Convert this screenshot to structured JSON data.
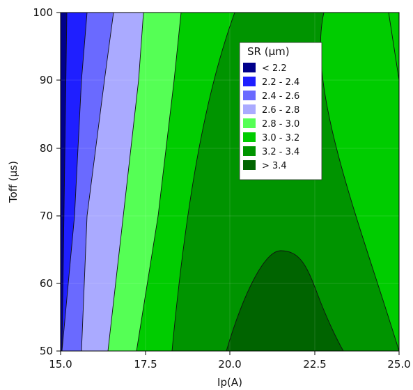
{
  "chart_data": {
    "type": "contour",
    "xlabel": "Ip(A)",
    "ylabel": "Toff (μs)",
    "xlim": [
      15.0,
      25.0
    ],
    "ylim": [
      50,
      100
    ],
    "xticks": [
      "15.0",
      "17.5",
      "20.0",
      "22.5",
      "25.0"
    ],
    "yticks": [
      "50",
      "60",
      "70",
      "80",
      "90",
      "100"
    ],
    "xtick_values": [
      15.0,
      17.5,
      20.0,
      22.5,
      25.0
    ],
    "ytick_values": [
      50,
      60,
      70,
      80,
      90,
      100
    ],
    "legend": {
      "title": "SR (μm)",
      "placement": "upper-right-inside",
      "items": [
        {
          "range": "< 2.2",
          "color": "#00008b"
        },
        {
          "range": "2.2 - 2.4",
          "color": "#1f1fff"
        },
        {
          "range": "2.4 - 2.6",
          "color": "#6a6aff"
        },
        {
          "range": "2.6 - 2.8",
          "color": "#aaaaff"
        },
        {
          "range": "2.8 - 3.0",
          "color": "#55ff55"
        },
        {
          "range": "3.0 - 3.2",
          "color": "#00cc00"
        },
        {
          "range": "3.2 - 3.4",
          "color": "#009400"
        },
        {
          "range": "> 3.4",
          "color": "#006400"
        }
      ]
    },
    "contour_lines": [
      {
        "level": 2.2,
        "points": [
          [
            15.05,
            50
          ],
          [
            15.15,
            100
          ]
        ]
      },
      {
        "level": 2.4,
        "points": [
          [
            15.65,
            50
          ],
          [
            16.0,
            70
          ],
          [
            16.35,
            90
          ],
          [
            16.5,
            100
          ]
        ]
      },
      {
        "level": 2.6,
        "points": [
          [
            16.4,
            50
          ],
          [
            16.8,
            70
          ],
          [
            17.2,
            90
          ],
          [
            17.35,
            100
          ]
        ]
      },
      {
        "level": 2.8,
        "points": [
          [
            17.25,
            50
          ],
          [
            17.7,
            70
          ],
          [
            18.1,
            90
          ],
          [
            18.3,
            100
          ]
        ]
      },
      {
        "level": 3.0,
        "points": [
          [
            18.3,
            50
          ],
          [
            18.55,
            70
          ],
          [
            18.85,
            90
          ],
          [
            19.05,
            100
          ]
        ]
      },
      {
        "level": 3.2,
        "points": [
          [
            19.6,
            50
          ],
          [
            20.05,
            70
          ],
          [
            20.6,
            90
          ],
          [
            21.3,
            100
          ],
          [
            22.5,
            100
          ],
          [
            23.5,
            80
          ],
          [
            24.2,
            65
          ],
          [
            25.0,
            50
          ]
        ]
      },
      {
        "level": 3.2,
        "points": [
          [
            24.6,
            100
          ],
          [
            25.0,
            90
          ]
        ]
      },
      {
        "level": 3.4,
        "points": [
          [
            20.0,
            50
          ],
          [
            20.8,
            60
          ],
          [
            21.6,
            64.7
          ],
          [
            22.0,
            64.3
          ],
          [
            22.8,
            60
          ],
          [
            23.4,
            50
          ]
        ]
      }
    ]
  }
}
